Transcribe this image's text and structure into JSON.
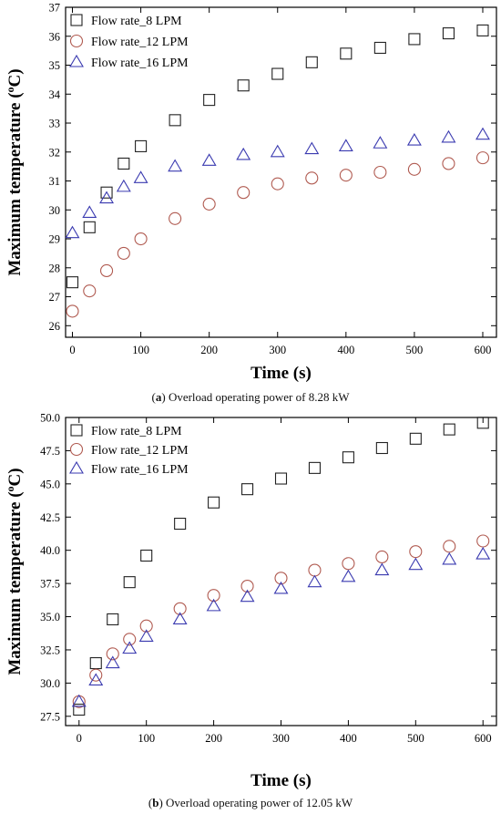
{
  "chart_data": [
    {
      "type": "scatter",
      "panel": "a",
      "caption_letter": "a",
      "caption_text": "Overload operating power of 8.28 kW",
      "xlabel": "Time (s)",
      "ylabel": "Maximum temperature (",
      "ylabel_sup": "o",
      "ylabel_tail": "C)",
      "xlim": [
        -10,
        620
      ],
      "ylim": [
        25.6,
        37
      ],
      "xticks": [
        0,
        100,
        200,
        300,
        400,
        500,
        600
      ],
      "xtick_labels": [
        "0",
        "100",
        "200",
        "300",
        "400",
        "500",
        "600"
      ],
      "yticks": [
        26,
        27,
        28,
        29,
        30,
        31,
        32,
        33,
        34,
        35,
        36,
        37
      ],
      "ytick_labels": [
        "26",
        "27",
        "28",
        "29",
        "30",
        "31",
        "32",
        "33",
        "34",
        "35",
        "36",
        "37"
      ],
      "grid": false,
      "legend_position": "top-left",
      "series": [
        {
          "name": "Flow rate_8 LPM",
          "marker": "square",
          "color": "#222222",
          "x": [
            0,
            25,
            50,
            75,
            100,
            150,
            200,
            250,
            300,
            350,
            400,
            450,
            500,
            550,
            600
          ],
          "y": [
            27.5,
            29.4,
            30.6,
            31.6,
            32.2,
            33.1,
            33.8,
            34.3,
            34.7,
            35.1,
            35.4,
            35.6,
            35.9,
            36.1,
            36.2
          ]
        },
        {
          "name": "Flow rate_12 LPM",
          "marker": "circle",
          "color": "#b05a50",
          "x": [
            0,
            25,
            50,
            75,
            100,
            150,
            200,
            250,
            300,
            350,
            400,
            450,
            500,
            550,
            600
          ],
          "y": [
            26.5,
            27.2,
            27.9,
            28.5,
            29.0,
            29.7,
            30.2,
            30.6,
            30.9,
            31.1,
            31.2,
            31.3,
            31.4,
            31.6,
            31.8
          ]
        },
        {
          "name": "Flow rate_16 LPM",
          "marker": "triangle",
          "color": "#3a3ab0",
          "x": [
            0,
            25,
            50,
            75,
            100,
            150,
            200,
            250,
            300,
            350,
            400,
            450,
            500,
            550,
            600
          ],
          "y": [
            29.2,
            29.9,
            30.4,
            30.8,
            31.1,
            31.5,
            31.7,
            31.9,
            32.0,
            32.1,
            32.2,
            32.3,
            32.4,
            32.5,
            32.6
          ]
        }
      ]
    },
    {
      "type": "scatter",
      "panel": "b",
      "caption_letter": "b",
      "caption_text": "Overload operating power of 12.05 kW",
      "xlabel": "Time (s)",
      "ylabel": "Maximum temperature (",
      "ylabel_sup": "o",
      "ylabel_tail": "C)",
      "xlim": [
        -20,
        620
      ],
      "ylim": [
        26.8,
        50
      ],
      "xticks": [
        0,
        100,
        200,
        300,
        400,
        500,
        600
      ],
      "xtick_labels": [
        "0",
        "100",
        "200",
        "300",
        "400",
        "500",
        "600"
      ],
      "yticks": [
        27.5,
        30.0,
        32.5,
        35.0,
        37.5,
        40.0,
        42.5,
        45.0,
        47.5,
        50.0
      ],
      "ytick_labels": [
        "27.5",
        "30.0",
        "32.5",
        "35.0",
        "37.5",
        "40.0",
        "42.5",
        "45.0",
        "47.5",
        "50.0"
      ],
      "grid": false,
      "legend_position": "top-left",
      "series": [
        {
          "name": "Flow rate_8 LPM",
          "marker": "square",
          "color": "#222222",
          "x": [
            0,
            25,
            50,
            75,
            100,
            150,
            200,
            250,
            300,
            350,
            400,
            450,
            500,
            550,
            600
          ],
          "y": [
            28.0,
            31.5,
            34.8,
            37.6,
            39.6,
            42.0,
            43.6,
            44.6,
            45.4,
            46.2,
            47.0,
            47.7,
            48.4,
            49.1,
            49.6
          ]
        },
        {
          "name": "Flow rate_12 LPM",
          "marker": "circle",
          "color": "#b05a50",
          "x": [
            0,
            25,
            50,
            75,
            100,
            150,
            200,
            250,
            300,
            350,
            400,
            450,
            500,
            550,
            600
          ],
          "y": [
            28.6,
            30.6,
            32.2,
            33.3,
            34.3,
            35.6,
            36.6,
            37.3,
            37.9,
            38.5,
            39.0,
            39.5,
            39.9,
            40.3,
            40.7
          ]
        },
        {
          "name": "Flow rate_16 LPM",
          "marker": "triangle",
          "color": "#3a3ab0",
          "x": [
            0,
            25,
            50,
            75,
            100,
            150,
            200,
            250,
            300,
            350,
            400,
            450,
            500,
            550,
            600
          ],
          "y": [
            28.6,
            30.2,
            31.5,
            32.6,
            33.5,
            34.8,
            35.8,
            36.5,
            37.1,
            37.6,
            38.0,
            38.5,
            38.9,
            39.3,
            39.7
          ]
        }
      ]
    }
  ]
}
